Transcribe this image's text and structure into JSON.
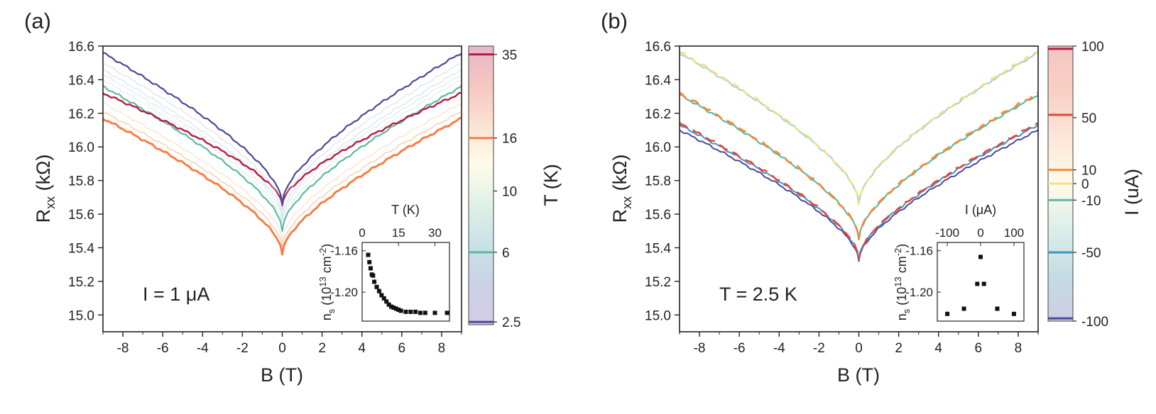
{
  "figure": {
    "panels": [
      {
        "id": "a",
        "panel_label": "(a)",
        "annotation": "I = 1 μA",
        "xlabel": "B (T)",
        "ylabel_main": "R",
        "ylabel_sub": "xx",
        "ylabel_unit": " (kΩ)",
        "colorbar_label": "T (K)",
        "inset": {
          "xlabel": "T (K)",
          "ylabel_main": "n",
          "ylabel_sub": "s",
          "ylabel_unit": " (10",
          "ylabel_exp": "13",
          "ylabel_unit2": " cm",
          "ylabel_exp2": "-2",
          "ylabel_close": ")"
        }
      },
      {
        "id": "b",
        "panel_label": "(b)",
        "annotation": "T = 2.5 K",
        "xlabel": "B (T)",
        "ylabel_main": "R",
        "ylabel_sub": "xx",
        "ylabel_unit": " (kΩ)",
        "colorbar_label": "I (uA)",
        "inset": {
          "xlabel": "I (μA)",
          "ylabel_main": "n",
          "ylabel_sub": "s",
          "ylabel_unit": " (10",
          "ylabel_exp": "13",
          "ylabel_unit2": " cm",
          "ylabel_exp2": "-2",
          "ylabel_close": ")"
        }
      }
    ]
  },
  "chart_data": [
    {
      "type": "line",
      "panel": "a",
      "xlim": [
        -9,
        9
      ],
      "ylim": [
        14.9,
        16.6
      ],
      "xticks": [
        -8,
        -6,
        -4,
        -2,
        0,
        2,
        4,
        6,
        8
      ],
      "yticks": [
        15.0,
        15.2,
        15.4,
        15.6,
        15.8,
        16.0,
        16.2,
        16.4,
        16.6
      ],
      "grid": false,
      "curve_model": "R(B) = R0 + k*sqrt(|B|) + m*|B|",
      "series": [
        {
          "r0": 15.36,
          "rmax": 16.17,
          "color": "#f57f45",
          "width": 3.0,
          "alpha": 1.0
        },
        {
          "r0": 15.4,
          "rmax": 16.21,
          "color": "#f7b78f",
          "width": 1.4,
          "alpha": 0.7
        },
        {
          "r0": 15.44,
          "rmax": 16.26,
          "color": "#f9d2b3",
          "width": 1.4,
          "alpha": 0.6
        },
        {
          "r0": 15.5,
          "rmax": 16.36,
          "color": "#5cb99f",
          "width": 2.2,
          "alpha": 1.0
        },
        {
          "r0": 15.53,
          "rmax": 16.4,
          "color": "#cfe8dc",
          "width": 1.3,
          "alpha": 0.6
        },
        {
          "r0": 15.56,
          "rmax": 16.43,
          "color": "#c6dde8",
          "width": 1.3,
          "alpha": 0.6
        },
        {
          "r0": 15.58,
          "rmax": 16.46,
          "color": "#c1d2e6",
          "width": 1.3,
          "alpha": 0.6
        },
        {
          "r0": 15.65,
          "rmax": 16.32,
          "color": "#b51d43",
          "width": 2.4,
          "alpha": 1.0
        },
        {
          "r0": 15.62,
          "rmax": 16.5,
          "color": "#c9cde6",
          "width": 1.3,
          "alpha": 0.6
        },
        {
          "r0": 15.66,
          "rmax": 16.56,
          "color": "#4b4897",
          "width": 2.2,
          "alpha": 1.0
        }
      ],
      "colorbar": {
        "label": "T (K)",
        "tick_labels": [
          "35",
          "16",
          "10",
          "6",
          "2.5"
        ],
        "tick_fracs": [
          0.03,
          0.33,
          0.52,
          0.74,
          0.99
        ],
        "line_colors": [
          "#b51d43",
          "#f57f45",
          "#5cb99f",
          "#4b4897"
        ],
        "line_fracs": [
          0.03,
          0.33,
          0.74,
          0.99
        ],
        "gradient": [
          "#e4b8c9",
          "#f6c7c0",
          "#fbe3d2",
          "#fefce9",
          "#def1e6",
          "#c8e2e8",
          "#cbd1e6",
          "#d5cce6"
        ]
      },
      "inset": {
        "type": "scatter",
        "xlim": [
          0,
          36
        ],
        "ylim": [
          -1.228,
          -1.152
        ],
        "xticks": [
          0,
          15,
          30
        ],
        "yticks": [
          -1.16,
          -1.2
        ],
        "x": [
          2.5,
          3,
          3.5,
          4,
          4.5,
          5,
          6,
          7,
          8,
          9,
          10,
          11,
          12,
          13,
          14,
          15,
          16,
          18,
          20,
          22,
          24,
          26,
          30,
          35
        ],
        "y": [
          -1.164,
          -1.171,
          -1.177,
          -1.183,
          -1.184,
          -1.19,
          -1.195,
          -1.199,
          -1.203,
          -1.206,
          -1.209,
          -1.212,
          -1.214,
          -1.215,
          -1.216,
          -1.217,
          -1.218,
          -1.219,
          -1.219,
          -1.219,
          -1.22,
          -1.22,
          -1.22,
          -1.22
        ]
      }
    },
    {
      "type": "line",
      "panel": "b",
      "xlim": [
        -9,
        9
      ],
      "ylim": [
        14.9,
        16.6
      ],
      "xticks": [
        -8,
        -6,
        -4,
        -2,
        0,
        2,
        4,
        6,
        8
      ],
      "yticks": [
        15.0,
        15.2,
        15.4,
        15.6,
        15.8,
        16.0,
        16.2,
        16.4,
        16.6
      ],
      "grid": false,
      "curve_model": "R(B) = R0 + k*sqrt(|B|) + m*|B|",
      "series": [
        {
          "r0": 15.66,
          "rmax": 16.56,
          "color": "#a9d5c2",
          "width": 2.2,
          "dash": null
        },
        {
          "r0": 15.66,
          "rmax": 16.57,
          "color": "#f3df88",
          "width": 2.6,
          "dash": "10,8"
        },
        {
          "r0": 15.45,
          "rmax": 16.31,
          "color": "#5cb99f",
          "width": 2.2,
          "dash": null
        },
        {
          "r0": 15.45,
          "rmax": 16.32,
          "color": "#f58a3b",
          "width": 2.8,
          "dash": "12,8"
        },
        {
          "r0": 15.32,
          "rmax": 16.1,
          "color": "#4b4897",
          "width": 2.0,
          "dash": null
        },
        {
          "r0": 15.33,
          "rmax": 16.13,
          "color": "#3e93c2",
          "width": 2.0,
          "dash": null
        },
        {
          "r0": 15.33,
          "rmax": 16.14,
          "color": "#e0463a",
          "width": 2.6,
          "dash": "14,8"
        }
      ],
      "colorbar": {
        "label": "I (uA)",
        "tick_labels": [
          "100",
          "50",
          "10",
          "0",
          "-10",
          "-50",
          "-100"
        ],
        "tick_fracs": [
          0.0,
          0.26,
          0.45,
          0.5,
          0.56,
          0.75,
          1.0
        ],
        "line_colors": [
          "#b51d43",
          "#e0463a",
          "#f58a3b",
          "#f3df88",
          "#5cb99f",
          "#3e93c2",
          "#4b4897"
        ],
        "line_fracs": [
          0.01,
          0.25,
          0.45,
          0.5,
          0.56,
          0.75,
          0.99
        ],
        "gradient": [
          "#f2c6c4",
          "#f9d0c4",
          "#fde6d8",
          "#fffbe9",
          "#dbeeea",
          "#c4dce4",
          "#cdcde3"
        ]
      },
      "inset": {
        "type": "scatter",
        "xlim": [
          -130,
          130
        ],
        "ylim": [
          -1.228,
          -1.152
        ],
        "xticks": [
          -100,
          0,
          100
        ],
        "yticks": [
          -1.16,
          -1.2
        ],
        "x": [
          -100,
          -50,
          -10,
          0,
          10,
          50,
          100
        ],
        "y": [
          -1.221,
          -1.216,
          -1.192,
          -1.166,
          -1.192,
          -1.216,
          -1.221
        ]
      }
    }
  ]
}
